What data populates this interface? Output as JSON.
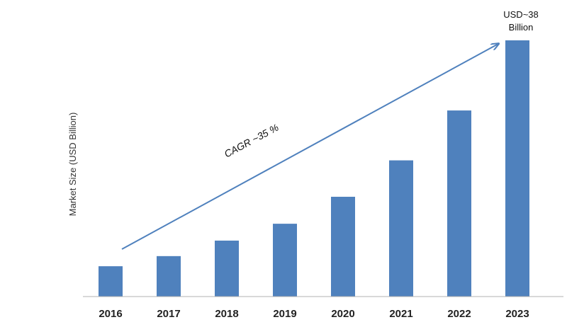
{
  "chart_data": {
    "type": "bar",
    "title": "",
    "xlabel": "",
    "ylabel": "Market Size (USD Billion)",
    "categories": [
      "2016",
      "2017",
      "2018",
      "2019",
      "2020",
      "2021",
      "2022",
      "2023"
    ],
    "values": [
      4.5,
      6.0,
      8.3,
      10.8,
      14.8,
      20.2,
      27.6,
      38.0
    ],
    "ylim": [
      0,
      40
    ],
    "grid": false,
    "bar_color": "#4F81BD",
    "arrow_color": "#4F81BD",
    "annotations": {
      "cagr": "CAGR ~35 %",
      "end_value_line1": "USD~38",
      "end_value_line2": "Billion"
    }
  }
}
